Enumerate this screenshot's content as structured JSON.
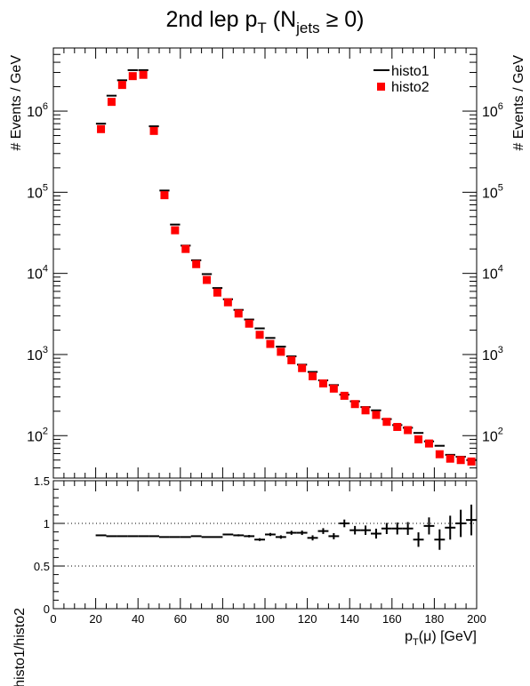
{
  "title": {
    "main": "2nd lep p",
    "main_sub": "T",
    "paren_open": "(N",
    "paren_sub": "jets",
    "paren_rest": "≥ 0)"
  },
  "top": {
    "ylabel_left": "# Events / GeV",
    "ylabel_right": "# Events / GeV",
    "legend": [
      {
        "label": "histo1",
        "marker": "line",
        "color": "#000000"
      },
      {
        "label": "histo2",
        "marker": "square",
        "color": "#ff0000"
      }
    ],
    "yticks": [
      {
        "base": "10",
        "exp": "2",
        "value": 100
      },
      {
        "base": "10",
        "exp": "3",
        "value": 1000
      },
      {
        "base": "10",
        "exp": "4",
        "value": 10000
      },
      {
        "base": "10",
        "exp": "5",
        "value": 100000
      },
      {
        "base": "10",
        "exp": "6",
        "value": 1000000
      }
    ]
  },
  "bottom": {
    "ylabel": "histo1/histo2",
    "yticks": [
      "0",
      "0.5",
      "1",
      "1.5"
    ],
    "xticks": [
      "0",
      "20",
      "40",
      "60",
      "80",
      "100",
      "120",
      "140",
      "160",
      "180",
      "200"
    ],
    "xlabel_main": "p",
    "xlabel_sub": "T",
    "xlabel_rest": "(μ) [GeV]"
  },
  "chart_data": [
    {
      "type": "scatter",
      "xlim": [
        0,
        200
      ],
      "ylim": [
        30,
        6000000
      ],
      "ylog": true,
      "bin_width": 5,
      "x": [
        22.5,
        27.5,
        32.5,
        37.5,
        42.5,
        47.5,
        52.5,
        57.5,
        62.5,
        67.5,
        72.5,
        77.5,
        82.5,
        87.5,
        92.5,
        97.5,
        102.5,
        107.5,
        112.5,
        117.5,
        122.5,
        127.5,
        132.5,
        137.5,
        142.5,
        147.5,
        152.5,
        157.5,
        162.5,
        167.5,
        172.5,
        177.5,
        182.5,
        187.5,
        192.5,
        197.5
      ],
      "series": [
        {
          "name": "histo1",
          "marker": "horizontal-line",
          "color": "#000000",
          "values": [
            700000,
            1550000,
            2400000,
            3200000,
            3200000,
            650000,
            105000,
            40000,
            22000,
            14500,
            9800,
            6600,
            4800,
            3550,
            2700,
            2100,
            1600,
            1250,
            950,
            750,
            610,
            480,
            420,
            320,
            265,
            225,
            205,
            160,
            135,
            125,
            108,
            85,
            75,
            58,
            55,
            50
          ]
        },
        {
          "name": "histo2",
          "marker": "square",
          "color": "#ff0000",
          "values": [
            600000,
            1300000,
            2100000,
            2700000,
            2800000,
            570000,
            92000,
            34000,
            20000,
            13000,
            8300,
            5800,
            4400,
            3200,
            2400,
            1750,
            1350,
            1080,
            850,
            680,
            540,
            440,
            380,
            310,
            245,
            205,
            180,
            148,
            128,
            117,
            90,
            80,
            59,
            52,
            50,
            48
          ]
        }
      ]
    },
    {
      "type": "scatter",
      "xlim": [
        0,
        200
      ],
      "ylim": [
        0,
        1.5
      ],
      "bin_width": 5,
      "reference_lines": [
        0.5,
        1.0,
        1.5
      ],
      "series": [
        {
          "name": "histo1/histo2",
          "x": [
            22.5,
            27.5,
            32.5,
            37.5,
            42.5,
            47.5,
            52.5,
            57.5,
            62.5,
            67.5,
            72.5,
            77.5,
            82.5,
            87.5,
            92.5,
            97.5,
            102.5,
            107.5,
            112.5,
            117.5,
            122.5,
            127.5,
            132.5,
            137.5,
            142.5,
            147.5,
            152.5,
            157.5,
            162.5,
            167.5,
            172.5,
            177.5,
            182.5,
            187.5,
            192.5,
            197.5
          ],
          "values": [
            0.86,
            0.85,
            0.85,
            0.85,
            0.85,
            0.85,
            0.84,
            0.84,
            0.84,
            0.85,
            0.84,
            0.84,
            0.87,
            0.86,
            0.85,
            0.81,
            0.87,
            0.84,
            0.89,
            0.89,
            0.83,
            0.91,
            0.85,
            1.0,
            0.92,
            0.92,
            0.88,
            0.94,
            0.94,
            0.94,
            0.81,
            0.97,
            0.81,
            0.95,
            1.0,
            1.04
          ],
          "errors": [
            0.003,
            0.003,
            0.003,
            0.003,
            0.003,
            0.003,
            0.004,
            0.005,
            0.006,
            0.007,
            0.008,
            0.009,
            0.01,
            0.012,
            0.014,
            0.016,
            0.018,
            0.02,
            0.024,
            0.026,
            0.03,
            0.034,
            0.036,
            0.045,
            0.05,
            0.055,
            0.058,
            0.065,
            0.07,
            0.075,
            0.085,
            0.1,
            0.12,
            0.14,
            0.16,
            0.18
          ]
        }
      ]
    }
  ]
}
